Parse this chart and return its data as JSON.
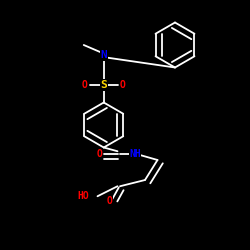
{
  "background_color": "#000000",
  "bond_color": "#FFFFFF",
  "atom_colors": {
    "N": "#0000FF",
    "O": "#FF0000",
    "S": "#FFD700",
    "H": "#FFFFFF",
    "C": "#FFFFFF"
  },
  "figsize": [
    2.5,
    2.5
  ],
  "dpi": 100
}
